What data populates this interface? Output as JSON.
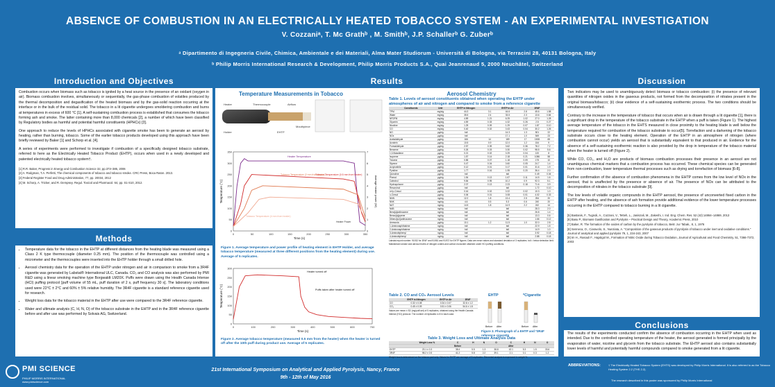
{
  "header": {
    "title": "ABSENCE OF COMBUSTION IN AN ELECTRICALLY HEATED TOBACCO SYSTEM - AN EXPERIMENTAL INVESTIGATION",
    "authors": "V. Cozzaniᵃ, T. Mc Grathᵇ , M. Smithᵇ, J.P. Schallerᵇ G. Zuberᵇ",
    "affiliation_a": "ᵃ Dipartimento di Ingegneria Civile, Chimica, Ambientale e dei Materiali, Alma Mater Studiorum - Università di Bologna, via Terracini 28, 40131 Bologna, Italy",
    "affiliation_b": "ᵇ Philip Morris International Research & Development, Philip Morris Products S.A., Quai Jeanrenaud 5, 2000 Neuchâtel, Switzerland"
  },
  "intro": {
    "heading": "Introduction and Objectives",
    "p1": "Combustion occurs when biomass such as tobacco is ignited by a heat source in the presence of an oxidant (oxygen in air). Biomass combustion involves, simultaneously or sequentially, the gas-phase combustion of volatiles produced by the thermal decomposition and degasification of the heated biomass and by the gas-solid reaction occurring at the interface or in the bulk of the residual solid. The tobacco in a lit cigarette undergoes smoldering combustion and burns at temperatures in excess of 600 °C [1]. A self-sustaining combustion process is established that consumes the tobacco forming ash and smoke. The latter containing more than 8,000 chemicals [2], a number of which have been classified by Regulatory bodies as harmful and potential harmful constituents (HPHCs) [3].",
    "p2": "One approach to reduce the levels of HPHCs associated with cigarette smoke has been to generate an aerosol by heating, rather than burning, tobacco. Some of the earlier tobacco products developed using this approach have been briefly reviewed by Baker [1] and Schorp et al. [4].",
    "p3": "A series of experiments were performed to investigate if combustion of a specifically designed tobacco substrate, referred to here as the Electrically Heated Tobacco Product (EHTP), occurs when used in a newly developed and patented electrically heated tobacco system†.",
    "refs": [
      "[1] R.R. Baker, Progress in Energy and Combustion Science 32, pp.373–385, 2006",
      "[2] A. Rodgman, T.A. Perfetti, The chemical components of tobacco and tobacco smoke. CRC Press, Boca Raton. 2013.",
      "[3] Federal Register Food and Drug Administration, 77, pp. 20034, 2012",
      "[4] M. Schorp, A. Tricker, and R. Dempsey. Regul. Toxicol and Pharmacol. 64, pp. S1-S10, 2012."
    ]
  },
  "methods": {
    "heading": "Methods",
    "bullets": [
      "Temperature data for the tobacco in the EHTP at different distances from the heating blade was measured using a Class 2 K type thermocouple (diameter 0.25 mm). The position of the thermocouple was controlled using a micrometer and the thermocouples were inserted into the EHTP holder through a small drilled hole.",
      "Aerosol chemistry data for the operation of the EHTP under nitrogen and air in comparison to smoke from a 3R4F cigarette was generated by Labstat® International ULC, Canada. CO₂ and CO analysis was also performed by PMI R&D using a linear smoking machine type Borgwaldt LM20X. Puffs were drawn using the Health Canada Intense (HCI) puffing protocol [puff volume of 55 mL, puff duration of 2 s, puff frequency 30 s]. The laboratory conditions used were 22°C ± 2°C and 60% ± 5% relative humidity. The 3R4F cigarette is a standard reference cigarette used for research.",
      "Weight loss data for the tobacco material in the EHTP after use were compared to the 3R4F reference cigarette.",
      "Water and ultimate analysis (C, H, N, O) of the tobacco substrate in the EHTP and in the 3R4F reference cigarette before and after use was performed by Solvais AG, Switzerland."
    ]
  },
  "results": {
    "heading": "Results",
    "temp_title": "Temperature Measurements in Tobacco",
    "temp_labels": [
      "Holder",
      "EHTP",
      "Heater",
      "Thermocouple",
      "Airflow",
      "Mouthpiece"
    ],
    "aerosol_title": "Aerosol Chemistry",
    "table1_title": "Table 1. Levels of aerosol constituents obtained when operating the EHTP under atmospheres of air and nitrogen and compared to smoke from a reference cigarette",
    "fig1_caption": "Figure 1. Average temperature and power profile of heating element in EHTP Holder, and average tobacco temperature (measured at three different positions from the heating element) during use. Average of 5 replicates.",
    "fig2_caption": "Figure 2. Average tobacco temperature (measured 0.5 mm from the heater) when the heater is turned off after the 10th puff during product use. Average of 5 replicates.",
    "table2_title": "Table 2. CO and CO₂ Aerosol Levels",
    "table3_title": "Table 3. Weight Loss and Ultimate Analysis Data",
    "fig3_caption": "Figure 3. Photograph of a EHTP and *3R4F reference cigarette",
    "ehtp_label": "EHTP",
    "cig_label": "*Cigarette",
    "before_label": "Before",
    "after_label": "After",
    "fig2_annot1": "Heater turned off",
    "fig2_annot2": "Puffs taken after heater turned off",
    "fig1_annot_heater": "Heater Temperature",
    "fig1_annot_tob1": "Tobacco Temperature (0.5 mm from heater)",
    "fig1_annot_tob2": "Tobacco Temperature (2 mm from heater)",
    "fig1_annot_tob3": "Tobacco Temperature (4 mm from heater)",
    "fig1_annot_power": "Heater Power",
    "table1_headers": [
      "Constituents",
      "Unit",
      "EHTP in Nitrogen",
      "",
      "EHTP in Air",
      "",
      "3R4F",
      ""
    ],
    "table1_rows": [
      [
        "TPM",
        "mg/cig",
        "44.3",
        "3.1",
        "44.6",
        "2.8",
        "45.6",
        "1.58"
      ],
      [
        "Water",
        "mg/cig",
        "35.5",
        "2.4",
        "33.5",
        "2.3",
        "13.6",
        "0.84"
      ],
      [
        "NFDPM",
        "mg/cig",
        "4.89",
        "1.21",
        "6.25",
        "1.02",
        "27.0",
        "1.28"
      ],
      [
        "Glycerin",
        "mg/cig",
        "4.59",
        "0.33",
        "4.32",
        "0.26",
        "2.5",
        "0.27"
      ],
      [
        "Nicotine",
        "mg/cig",
        "1.25",
        "0.09",
        "1.29",
        "0.07",
        "1.87",
        "0.10"
      ],
      [
        "CO",
        "mg/cig",
        "0.40",
        "0.02",
        "0.43",
        "0.04",
        "30.2",
        "1.26"
      ],
      [
        "NO",
        "µg/cig",
        "bdl",
        "",
        "14.3",
        "1.3",
        "501",
        "22"
      ],
      [
        "NOx",
        "µg/cig",
        "bdl",
        "",
        "17.1",
        "1.0",
        "549",
        "23"
      ],
      [
        "Acetaldehyde",
        "µg/cig",
        "166",
        "14",
        "189",
        "17",
        "1508",
        "65"
      ],
      [
        "Acrolein",
        "µg/cig",
        "10.5",
        "0.9",
        "12.0",
        "1.2",
        "154",
        "9"
      ],
      [
        "Formaldehyde",
        "µg/cig",
        "2.57",
        "0.39",
        "3.62",
        "0.36",
        "78.2",
        "7.2"
      ],
      [
        "Benzene",
        "µg/cig",
        "0.26",
        "0.03",
        "0.30",
        "0.02",
        "98.5",
        "5.6"
      ],
      [
        "1,3-Butadiene",
        "µg/cig",
        "0.21",
        "0.02",
        "0.29",
        "0.04",
        "120",
        "8"
      ],
      [
        "Isoprene",
        "µg/cig",
        "1.57",
        "0.14",
        "2.18",
        "0.21",
        "1086",
        "58"
      ],
      [
        "Toluene",
        "µg/cig",
        "0.85",
        "0.07",
        "1.18",
        "0.09",
        "175",
        "10"
      ],
      [
        "Styrene",
        "µg/cig",
        "0.47",
        "0.04",
        "0.60",
        "0.05",
        "24.7",
        "1.4"
      ],
      [
        "Acrylonitrile",
        "µg/cig",
        "0.12",
        "0.01",
        "0.17",
        "0.01",
        "31.6",
        "1.9"
      ],
      [
        "Pyridine",
        "µg/cig",
        "1.77",
        "0.16",
        "1.95",
        "0.20",
        "36.4",
        "2.0"
      ],
      [
        "Quinoline",
        "µg/cig",
        "bdl",
        "",
        "bdl",
        "",
        "0.49",
        "0.04"
      ],
      [
        "Phenol",
        "µg/cig",
        "1.54",
        "0.13",
        "1.67",
        "0.11",
        "14.5",
        "1.6"
      ],
      [
        "Catechol",
        "µg/cig",
        "9.84",
        "0.95",
        "10.2",
        "0.9",
        "92.3",
        "5.1"
      ],
      [
        "Hydroquinone",
        "µg/cig",
        "2.07",
        "0.13",
        "2.23",
        "0.18",
        "71.6",
        "3.9"
      ],
      [
        "Resorcinol",
        "µg/cig",
        "bdl",
        "",
        "bdl",
        "",
        "1.72",
        "0.10"
      ],
      [
        "m+p-Cresol",
        "µg/cig",
        "0.16",
        "0.02",
        "0.22",
        "0.02",
        "10.3",
        "1.0"
      ],
      [
        "o-Cresol",
        "µg/cig",
        "0.06",
        "0.01",
        "0.08",
        "0.01",
        "4.02",
        "0.33"
      ],
      [
        "NNN",
        "ng/cig",
        "12.2",
        "1.8",
        "13.4",
        "2.5",
        "254",
        "20"
      ],
      [
        "NNK",
        "ng/cig",
        "4.6",
        "0.5",
        "5.3",
        "0.6",
        "240",
        "20"
      ],
      [
        "NAT",
        "ng/cig",
        "14.5",
        "1.8",
        "14.9",
        "2.2",
        "242",
        "14"
      ],
      [
        "NAB",
        "ng/cig",
        "bdl",
        "",
        "bdl",
        "",
        "28.3",
        "2.0"
      ],
      [
        "Benz[a]anthracene",
        "ng/cig",
        "bdl",
        "",
        "bdl",
        "",
        "26.8",
        "1.4"
      ],
      [
        "Benzo[a]pyrene",
        "ng/cig",
        "bdl",
        "",
        "bdl",
        "",
        "13.3",
        "0.6"
      ],
      [
        "Dibenz[a,h]anthracene",
        "ng/cig",
        "bdl",
        "",
        "bdl",
        "",
        "1.66",
        "0.12"
      ],
      [
        "Ammonia",
        "µg/cig",
        "10.1",
        "1.2",
        "11.5",
        "1.0",
        "32.0",
        "2.8"
      ],
      [
        "1-Aminonaphthalene",
        "ng/cig",
        "bdl",
        "",
        "bdl",
        "",
        "22.9",
        "1.5"
      ],
      [
        "2-Aminonaphthalene",
        "ng/cig",
        "bdl",
        "",
        "bdl",
        "",
        "14.9",
        "1.0"
      ],
      [
        "3-Aminobiphenyl",
        "ng/cig",
        "bdl",
        "",
        "bdl",
        "",
        "3.92",
        "0.18"
      ],
      [
        "4-Aminobiphenyl",
        "ng/cig",
        "bdl",
        "",
        "bdl",
        "",
        "2.88",
        "0.18"
      ]
    ],
    "table1_note": "Labstat report number: 91932 for 3R4F and 91981 and 91972 for EHTP figures. Data are mean values and standard deviation of 3 replicates. bdl = below detection limit. Mainstream smoke and aerosol levels of nitrogen oxides and carbon monoxide obtained under HCI puffing conditions.",
    "table2_headers": [
      "",
      "EHTP in Nitrogen",
      "EHTP in Air",
      "3R4F"
    ],
    "table2_rows": [
      [
        "CO",
        "0.32 ± 0.08",
        "0.34 ± 0.07",
        "32.8 ± 1.2"
      ],
      [
        "CO₂",
        "0.45 ± 0.09",
        "0.51 ± 0.06",
        "54.6 ± 1.8"
      ]
    ],
    "table2_note": "Values are mean ± SD (mg/puff-set) of 5 replicates, obtained using the Health Canada Intense (HCI) protocol. The number of replicates n=5 in each case.",
    "table3_headers": [
      "",
      "Weight Loss %",
      "C",
      "H",
      "N",
      "O",
      "C",
      "H",
      "N",
      "O"
    ],
    "table3_sub": [
      "",
      "",
      "Before",
      "",
      "",
      "",
      "After",
      "",
      "",
      ""
    ],
    "table3_rows": [
      [
        "EHTP",
        "23.1 ± 0.3",
        "38.4",
        "5.5",
        "1.3",
        "38.8",
        "42.1",
        "5.3",
        "1.5",
        "33.6"
      ],
      [
        "3R4F",
        "98.2 ± 0.5",
        "41.2",
        "5.8",
        "2.2",
        "39.1",
        "2.1",
        "0.1",
        "0.3",
        "1.2"
      ]
    ],
    "table3_note": "Weight loss is determined on the tobacco part only. Values for EHTP are average of 5 replicates. Elemental analysis is expressed in weight %."
  },
  "chart1": {
    "type": "line",
    "xlabel": "Time (s)",
    "ylabel": "Temperature (°C)",
    "y2label": "Average heater power (W)",
    "xlim": [
      0,
      360
    ],
    "ylim": [
      0,
      350
    ],
    "xticks": [
      "0",
      "50",
      "100",
      "150",
      "200",
      "250",
      "300",
      "350"
    ],
    "yticks": [
      "0",
      "50",
      "100",
      "150",
      "200",
      "250",
      "300",
      "350"
    ],
    "y2ticks": [
      "0",
      "1",
      "2",
      "3",
      "4",
      "5",
      "6",
      "7"
    ],
    "heater": [
      [
        0,
        20
      ],
      [
        10,
        200
      ],
      [
        20,
        300
      ],
      [
        30,
        320
      ],
      [
        40,
        310
      ],
      [
        300,
        310
      ],
      [
        330,
        300
      ],
      [
        345,
        40
      ],
      [
        360,
        25
      ]
    ],
    "tobacco1": [
      [
        0,
        20
      ],
      [
        20,
        120
      ],
      [
        30,
        200
      ],
      [
        50,
        250
      ],
      [
        300,
        230
      ],
      [
        330,
        220
      ],
      [
        350,
        80
      ],
      [
        360,
        40
      ]
    ],
    "tobacco2": [
      [
        0,
        20
      ],
      [
        30,
        100
      ],
      [
        50,
        180
      ],
      [
        80,
        200
      ],
      [
        300,
        185
      ],
      [
        340,
        160
      ],
      [
        360,
        60
      ]
    ],
    "tobacco3": [
      [
        0,
        20
      ],
      [
        40,
        80
      ],
      [
        70,
        140
      ],
      [
        100,
        150
      ],
      [
        300,
        140
      ],
      [
        340,
        120
      ],
      [
        360,
        50
      ]
    ]
  },
  "chart2": {
    "type": "line",
    "xlabel": "Time (s)",
    "ylabel": "Temperature (°C)",
    "xlim": [
      0,
      700
    ],
    "ylim": [
      0,
      300
    ],
    "xticks": [
      "0",
      "100",
      "200",
      "300",
      "400",
      "500",
      "600",
      "700"
    ],
    "yticks": [
      "0",
      "50",
      "100",
      "150",
      "200",
      "250",
      "300"
    ],
    "points": [
      [
        0,
        25
      ],
      [
        30,
        200
      ],
      [
        60,
        260
      ],
      [
        120,
        265
      ],
      [
        250,
        260
      ],
      [
        330,
        255
      ],
      [
        340,
        150
      ],
      [
        360,
        90
      ],
      [
        380,
        65
      ],
      [
        420,
        50
      ],
      [
        480,
        40
      ],
      [
        560,
        35
      ],
      [
        640,
        30
      ],
      [
        700,
        28
      ]
    ]
  },
  "discussion": {
    "heading": "Discussion",
    "p1": "Two indicators may be used to unambiguously detect biomass or tobacco combustion: (i) the presence of relevant quantities of nitrogen oxides in the gaseous products, not formed from the decomposition of nitrates present in the original biomass/tobacco; (ii) clear evidence of a self-sustaining exothermic process. The two conditions should be simultaneously verified.",
    "p2": "Contrary to the increase in the temperature of tobacco that occurs when air is drawn through a lit cigarette [1], there is a significant drop in the temperature of the tobacco substrate in the EHTP when a puff is taken (Figure 1). The highest average temperature of the tobacco in the EHTS measured in close proximity to the heating blade is well below the temperature required for combustion of the tobacco substrate to occur[5]. Torrefaction and a darkening of the tobacco substrate occurs close to the heating element. Operation of the EHTP in an atmosphere of nitrogen (where combustion cannot occur) yields an aerosol that is substantially equivalent to that produced in air. Evidence for the absence of a self-sustaining exothermic reaction is also provided by the drop in temperature of the tobacco material when the heater is turned off (Figure 2).",
    "p3": "While CO, CO₂, and H₂O are products of biomass combustion processes their presence in an aerosol are not unambiguous chemical markers that a combustion process has occurred. These chemical species can be generated from non-combustion, lower temperature thermal processes such as drying and torrefaction of biomass [6-8].",
    "p4": "Further confirmation of the absence of combustion phenomena in the EHTP comes from the low level of NOx in the aerosol, that is unaffected by the presence or absence of air. The presence of NOx can be attributed to the decomposition of nitrates in the tobacco substrate [9].",
    "p5": "The low levels of volatile organic compounds in the EHTP aerosol, the presence of unconverted fixed carbon in the EHTP after heating, and the absence of ash formation provide additional evidence of the lower temperature processes occurring in the EHTP compared to tobacco burning in a lit cigarette.",
    "refs": [
      "[5] Bastanis, F., Tugnoli, A., Cozzani, V., Tetteh, L., Janiszali, M., Zakeshi, I. Ind. Eng. Chem. Res. 52 (42):14864–14869, 2013",
      "[6] Basu P., Biomass Gasification and Pyrolysis – Practical Design and Theory, Academic Press, 2010",
      "[7] Baker, R. The formation of the oxides of carbon by the pyrolysis of tobacco, Beitr. zur Tabak., 8, 1, 1976",
      "[8] Senneca, O., Ciaravolo, S., Nunziata, A. \"Composition of the gaseous products of pyrolysis of tobacco under inert and oxidative conditions.\" Journal of analytical and applied pyrolysis 79, 1, 234-243, 2007",
      "[9] Im H., Rasouli F., Hajaligol M., Formation of Nitric Oxide during Tobacco Oxidation, Journal of Agricultural and Food Chemistry, 51, 7366-7372, 2003"
    ]
  },
  "conclusions": {
    "heading": "Conclusions",
    "text": "The results of the experiments conducted confirm the absence of combustion occurring in the EHTP when used as intended. Due to the controlled operating temperature of the heater, the aerosol generated is formed principally by the evaporation of water, nicotine and glycerin from the tobacco substrate. The EHTP aerosol also contains substantially lower levels of harmful and potentially harmful compounds compared to smoke generated from a lit cigarette."
  },
  "footer": {
    "logo": "PMI SCIENCE",
    "logo_sub": "PHILIP MORRIS INTERNATIONAL",
    "logo_url": "www.pmiscience.com",
    "symposium": "21st International Symposium on Analytical and Applied Pyrolysis, Nancy, France",
    "dates": "9th - 12th of May 2016",
    "abbreviations_label": "ABBREVIATIONS:",
    "abbreviations_text": "† The Electrically Heated Tobacco System (EHTS) was developed by Philip Morris International. It is also referred to as the Tobacco Heating System 2.2 (THS 2.2).",
    "research_note": "The research described in this poster was sponsored by Philip Morris International"
  },
  "colors": {
    "brand": "#1e6fb0",
    "caption": "#1e6fb0",
    "heater": "#7b2a8c",
    "tobacco1": "#d12a2a",
    "tobacco2": "#e07a50",
    "tobacco3": "#f0a890"
  }
}
